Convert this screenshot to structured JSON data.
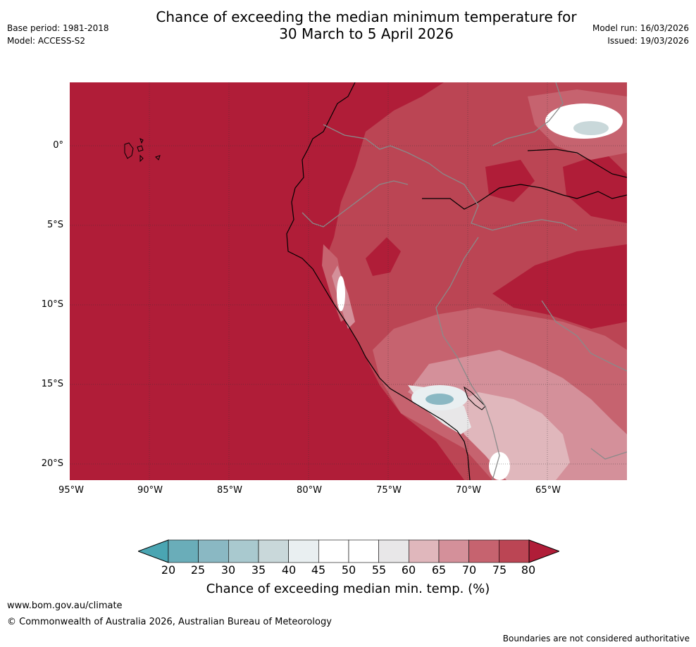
{
  "header": {
    "title_line1": "Chance of exceeding the median minimum temperature for",
    "title_line2": "30 March to 5 April 2026",
    "base_period": "Base period: 1981-2018",
    "model": "Model: ACCESS-S2",
    "model_run": "Model run: 16/03/2026",
    "issued": "Issued: 19/03/2026"
  },
  "map": {
    "lat_labels": [
      "0°",
      "5°S",
      "10°S",
      "15°S",
      "20°S"
    ],
    "lon_labels": [
      "95°W",
      "90°W",
      "85°W",
      "80°W",
      "75°W",
      "70°W",
      "65°W"
    ],
    "extent": {
      "lon_min": -95,
      "lon_max": -60,
      "lat_min": -21,
      "lat_max": 4
    },
    "dominant_category": "> 80%"
  },
  "colorbar": {
    "ticks": [
      "20",
      "25",
      "30",
      "35",
      "40",
      "45",
      "50",
      "55",
      "60",
      "65",
      "70",
      "75",
      "80"
    ],
    "bin_colors": [
      "#6aadb9",
      "#8ab8c3",
      "#a9c9cf",
      "#c9d8da",
      "#e9eff1",
      "#ffffff",
      "#ffffff",
      "#e8e7e8",
      "#e0b7bc",
      "#d4909a",
      "#c6636f",
      "#bb4554"
    ],
    "below_color": "#4aa5b2",
    "above_color": "#b01d38",
    "title": "Chance of exceeding median min. temp. (%)"
  },
  "footer": {
    "website": "www.bom.gov.au/climate",
    "copyright": "© Commonwealth of Australia 2026, Australian Bureau of Meteorology",
    "disclaimer": "Boundaries are not considered authoritative"
  }
}
